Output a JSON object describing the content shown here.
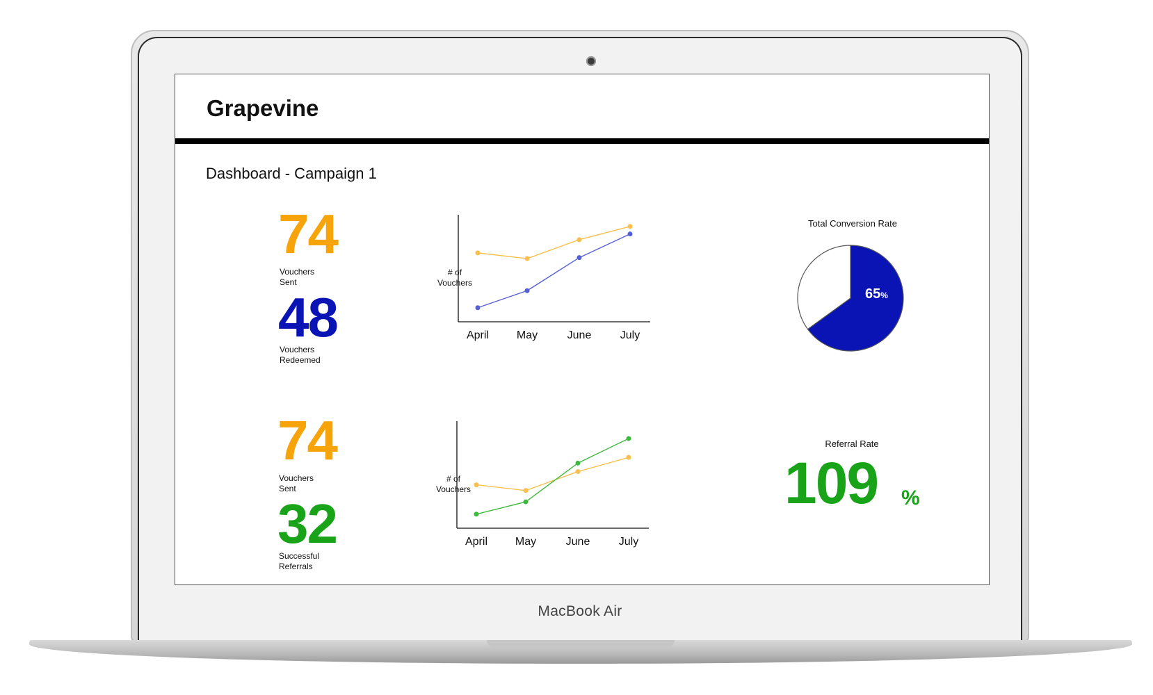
{
  "app": {
    "title": "Grapevine",
    "page_title": "Dashboard - Campaign 1"
  },
  "device": {
    "model": "MacBook Air"
  },
  "colors": {
    "orange": "#F7A30A",
    "blue": "#0A14B5",
    "green": "#18A318",
    "orange_line": "#F9BF4F",
    "blue_line": "#5560D6",
    "green_line": "#3DBA3D"
  },
  "stats": {
    "row1": {
      "top_value": "74",
      "top_label_1": "Vouchers",
      "top_label_2": "Sent",
      "bottom_value": "48",
      "bottom_label_1": "Vouchers",
      "bottom_label_2": "Redeemed"
    },
    "row2": {
      "top_value": "74",
      "top_label_1": "Vouchers",
      "top_label_2": "Sent",
      "bottom_value": "32",
      "bottom_label_1": "Successful",
      "bottom_label_2": "Referrals"
    }
  },
  "chart_labels": {
    "chart1_ylabel_1": "# of",
    "chart1_ylabel_2": "Vouchers",
    "chart2_ylabel_1": "# of",
    "chart2_ylabel_2": "Vouchers"
  },
  "chart_data": [
    {
      "type": "line",
      "categories": [
        "April",
        "May",
        "June",
        "July"
      ],
      "ylabel": "# of Vouchers",
      "ylim": [
        0,
        100
      ],
      "series": [
        {
          "values": [
            67,
            61,
            81,
            95
          ],
          "color": "#F9BF4F"
        },
        {
          "values": [
            9,
            27,
            62,
            87
          ],
          "color": "#5560D6"
        }
      ]
    },
    {
      "type": "line",
      "categories": [
        "April",
        "May",
        "June",
        "July"
      ],
      "ylabel": "# of Vouchers",
      "ylim": [
        0,
        100
      ],
      "series": [
        {
          "values": [
            40,
            34,
            54,
            69
          ],
          "color": "#F9BF4F"
        },
        {
          "values": [
            9,
            22,
            63,
            89
          ],
          "color": "#3DBA3D"
        }
      ]
    },
    {
      "type": "pie",
      "title": "Total Conversion Rate",
      "values": [
        65,
        35
      ],
      "value_label": "65",
      "unit": "%",
      "colors": [
        "#0A14B5",
        "#FFFFFF"
      ]
    }
  ],
  "referral": {
    "title": "Referral Rate",
    "value": "109",
    "unit": "%"
  }
}
